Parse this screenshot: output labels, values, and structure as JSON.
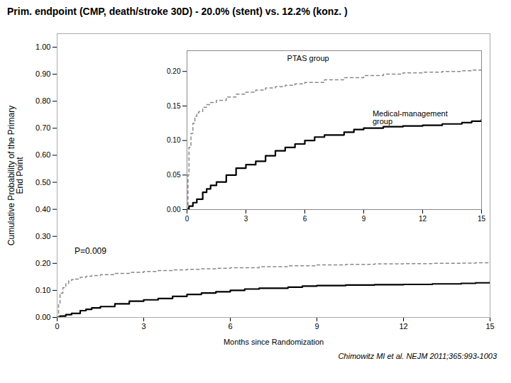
{
  "chart_data": [
    {
      "type": "line",
      "title": "Prim. endpoint (CMP, death/stroke 30D) -  20.0% (stent) vs. 12.2% (konz. )",
      "xlabel": "Months since Randomization",
      "ylabel": "Cumulative Probability of the Primary\nEnd Point",
      "xlim": [
        0,
        15
      ],
      "ylim": [
        0.0,
        1.05
      ],
      "xticks": [
        0,
        3,
        6,
        9,
        12,
        15
      ],
      "yticks": [
        {
          "value": 0.0,
          "label": "0.00"
        },
        {
          "value": 0.1,
          "label": "0.10"
        },
        {
          "value": 0.2,
          "label": "0.20"
        },
        {
          "value": 0.3,
          "label": "0.30"
        },
        {
          "value": 0.4,
          "label": "0.40"
        },
        {
          "value": 0.5,
          "label": "0.50"
        },
        {
          "value": 0.6,
          "label": "0.60"
        },
        {
          "value": 0.7,
          "label": "0.70"
        },
        {
          "value": 0.8,
          "label": "0.80"
        },
        {
          "value": 0.9,
          "label": "0.90"
        },
        {
          "value": 1.0,
          "label": "1.00"
        }
      ],
      "annotations": [
        "P=0.009"
      ],
      "caption": "Chimowitz MI et al. NEJM 2011;365:993-1003",
      "series": [
        {
          "color": "#888888",
          "line_style": "dashed",
          "x": [
            0,
            0.05,
            0.1,
            0.2,
            0.3,
            0.4,
            0.5,
            0.6,
            0.8,
            1.0,
            1.2,
            1.5,
            2.0,
            2.5,
            3.0,
            3.5,
            4.0,
            4.5,
            5.0,
            5.5,
            6.0,
            7.0,
            8.0,
            9.0,
            10.0,
            11.0,
            12.0,
            13.0,
            14.0,
            14.5,
            15.0
          ],
          "values": [
            0.0,
            0.05,
            0.09,
            0.11,
            0.125,
            0.135,
            0.14,
            0.142,
            0.148,
            0.152,
            0.155,
            0.158,
            0.163,
            0.167,
            0.17,
            0.173,
            0.176,
            0.178,
            0.18,
            0.182,
            0.184,
            0.188,
            0.191,
            0.194,
            0.196,
            0.198,
            0.199,
            0.2,
            0.201,
            0.202,
            0.205
          ]
        },
        {
          "color": "#000000",
          "line_style": "solid",
          "x": [
            0,
            0.1,
            0.3,
            0.5,
            0.8,
            1.0,
            1.2,
            1.5,
            2.0,
            2.5,
            3.0,
            3.5,
            4.0,
            4.5,
            5.0,
            5.5,
            6.0,
            6.5,
            7.0,
            8.0,
            8.5,
            9.0,
            10.0,
            11.0,
            12.0,
            13.0,
            14.0,
            14.5,
            15.0
          ],
          "values": [
            0.0,
            0.005,
            0.01,
            0.015,
            0.025,
            0.03,
            0.035,
            0.04,
            0.05,
            0.06,
            0.065,
            0.07,
            0.078,
            0.085,
            0.09,
            0.095,
            0.1,
            0.105,
            0.108,
            0.112,
            0.116,
            0.118,
            0.12,
            0.121,
            0.122,
            0.124,
            0.126,
            0.128,
            0.13
          ]
        }
      ]
    },
    {
      "type": "line",
      "xlim": [
        0,
        15
      ],
      "ylim": [
        0.0,
        0.23
      ],
      "xticks": [
        0,
        3,
        6,
        9,
        12,
        15
      ],
      "yticks": [
        {
          "value": 0.0,
          "label": "0.00"
        },
        {
          "value": 0.05,
          "label": "0.05"
        },
        {
          "value": 0.1,
          "label": "0.10"
        },
        {
          "value": 0.15,
          "label": "0.15"
        },
        {
          "value": 0.2,
          "label": "0.20"
        }
      ],
      "series": [
        {
          "name": "PTAS group",
          "color": "#888888",
          "line_style": "dashed",
          "x": [
            0,
            0.05,
            0.1,
            0.2,
            0.3,
            0.4,
            0.5,
            0.6,
            0.8,
            1.0,
            1.2,
            1.5,
            2.0,
            2.5,
            3.0,
            3.5,
            4.0,
            4.5,
            5.0,
            5.5,
            6.0,
            7.0,
            8.0,
            9.0,
            10.0,
            11.0,
            12.0,
            13.0,
            14.0,
            14.5,
            15.0
          ],
          "values": [
            0.0,
            0.05,
            0.09,
            0.11,
            0.125,
            0.135,
            0.14,
            0.142,
            0.148,
            0.152,
            0.155,
            0.158,
            0.163,
            0.167,
            0.17,
            0.173,
            0.176,
            0.178,
            0.18,
            0.182,
            0.184,
            0.188,
            0.191,
            0.194,
            0.196,
            0.198,
            0.199,
            0.2,
            0.201,
            0.202,
            0.205
          ]
        },
        {
          "name": "Medical-management\ngroup",
          "color": "#000000",
          "line_style": "solid",
          "x": [
            0,
            0.1,
            0.3,
            0.5,
            0.8,
            1.0,
            1.2,
            1.5,
            2.0,
            2.5,
            3.0,
            3.5,
            4.0,
            4.5,
            5.0,
            5.5,
            6.0,
            6.5,
            7.0,
            8.0,
            8.5,
            9.0,
            10.0,
            11.0,
            12.0,
            13.0,
            14.0,
            14.5,
            15.0
          ],
          "values": [
            0.0,
            0.005,
            0.01,
            0.015,
            0.025,
            0.03,
            0.035,
            0.04,
            0.05,
            0.06,
            0.065,
            0.07,
            0.078,
            0.085,
            0.09,
            0.095,
            0.1,
            0.105,
            0.108,
            0.112,
            0.116,
            0.118,
            0.12,
            0.121,
            0.122,
            0.124,
            0.126,
            0.128,
            0.13
          ]
        }
      ]
    }
  ]
}
